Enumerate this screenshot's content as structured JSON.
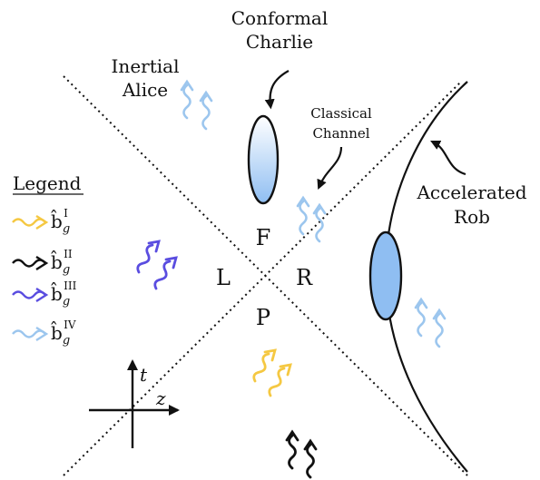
{
  "labels": {
    "conformal_line1": "Conformal",
    "conformal_line2": "Charlie",
    "inertial_line1": "Inertial",
    "inertial_line2": "Alice",
    "classical_line1": "Classical",
    "classical_line2": "Channel",
    "accelerated_line1": "Accelerated",
    "accelerated_line2": "Rob"
  },
  "regions": {
    "future": "F",
    "left": "L",
    "right": "R",
    "past": "P"
  },
  "legend": {
    "title": "Legend",
    "items": [
      {
        "symbol": "b̂",
        "sub": "g",
        "sup": "I",
        "color": "#f5c842"
      },
      {
        "symbol": "b̂",
        "sub": "g",
        "sup": "II",
        "color": "#111111"
      },
      {
        "symbol": "b̂",
        "sub": "g",
        "sup": "III",
        "color": "#5a4de0"
      },
      {
        "symbol": "b̂",
        "sub": "g",
        "sup": "IV",
        "color": "#9cc6ee"
      }
    ]
  },
  "axes": {
    "t": "t",
    "z": "z"
  },
  "colors": {
    "yellow": "#f5c842",
    "black": "#111111",
    "purple": "#5a4de0",
    "light_blue": "#9cc6ee",
    "detector_fill": "#8fbef2"
  }
}
